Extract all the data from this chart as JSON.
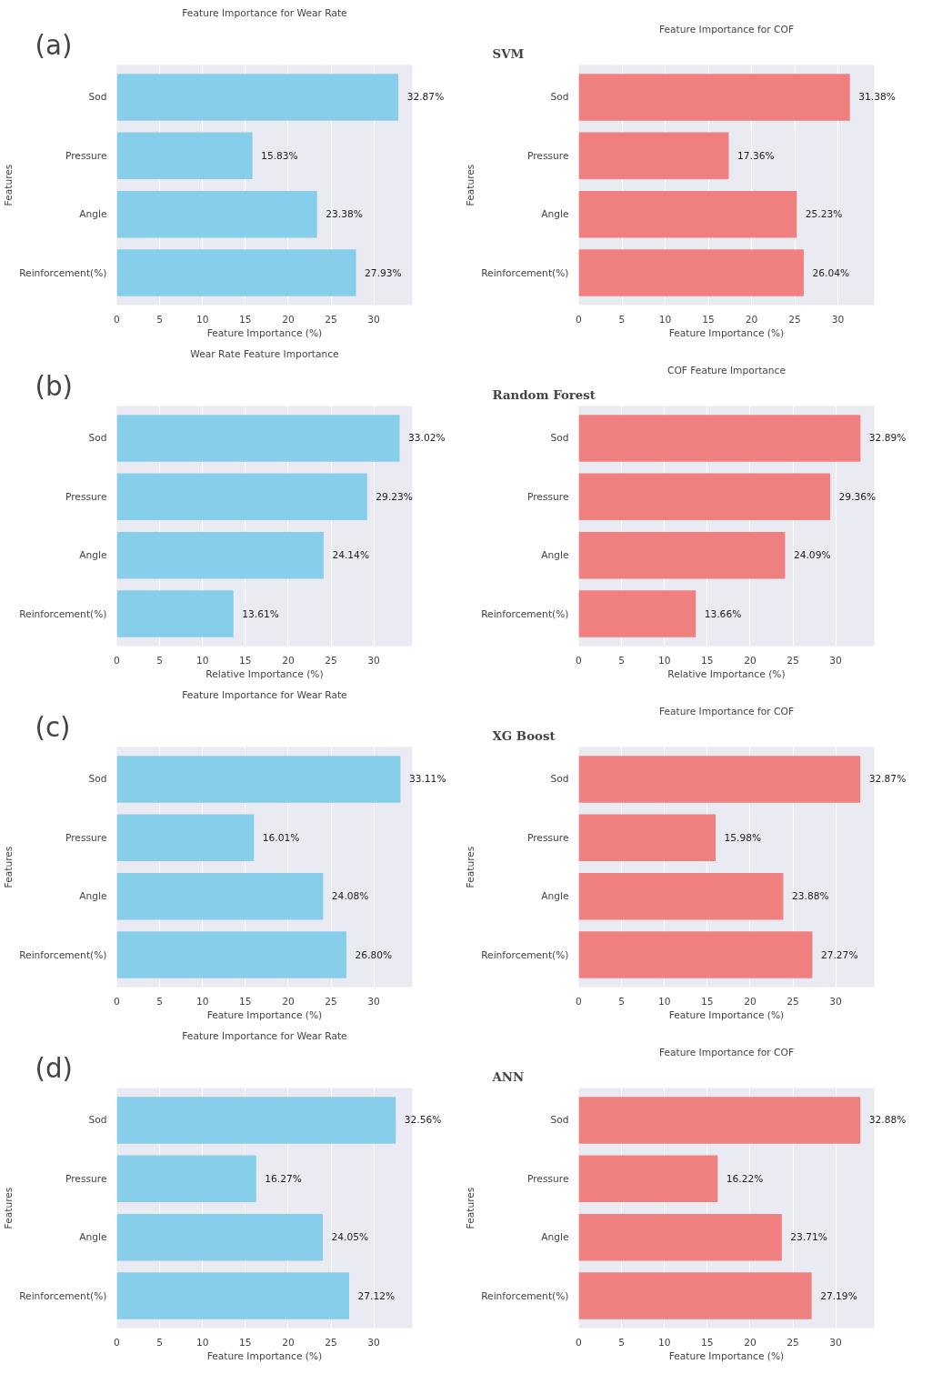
{
  "chart_data": [
    {
      "type": "bar",
      "orientation": "horizontal",
      "title": "Feature Importance for Wear Rate",
      "xlabel": "Feature Importance (%)",
      "ylabel": "Features",
      "annotations": [
        "(a)"
      ],
      "categories": [
        "Sod",
        "Pressure",
        "Angle",
        "Reinforcement(%)"
      ],
      "values": [
        32.87,
        15.83,
        23.38,
        27.93
      ],
      "value_labels": [
        "32.87%",
        "15.83%",
        "23.38%",
        "27.93%"
      ],
      "color": "#87ceeb",
      "xlim": [
        0,
        34.5
      ],
      "xticks": [
        0,
        5,
        10,
        15,
        20,
        25,
        30
      ],
      "grid": "x"
    },
    {
      "type": "bar",
      "orientation": "horizontal",
      "title": "Feature Importance for COF",
      "xlabel": "Feature Importance (%)",
      "ylabel": "Features",
      "annotations": [
        "SVM"
      ],
      "categories": [
        "Sod",
        "Pressure",
        "Angle",
        "Reinforcement(%)"
      ],
      "values": [
        31.38,
        17.36,
        25.23,
        26.04
      ],
      "value_labels": [
        "31.38%",
        "17.36%",
        "25.23%",
        "26.04%"
      ],
      "color": "#f08080",
      "xlim": [
        0,
        34.2
      ],
      "xticks": [
        0,
        5,
        10,
        15,
        20,
        25,
        30
      ],
      "grid": "x"
    },
    {
      "type": "bar",
      "orientation": "horizontal",
      "title": "Wear Rate Feature Importance",
      "xlabel": "Relative Importance (%)",
      "annotations": [
        "(b)"
      ],
      "categories": [
        "Sod",
        "Pressure",
        "Angle",
        "Reinforcement(%)"
      ],
      "values": [
        33.02,
        29.23,
        24.14,
        13.61
      ],
      "value_labels": [
        "33.02%",
        "29.23%",
        "24.14%",
        "13.61%"
      ],
      "color": "#87ceeb",
      "xlim": [
        0,
        34.5
      ],
      "xticks": [
        0,
        5,
        10,
        15,
        20,
        25,
        30
      ],
      "grid": "x"
    },
    {
      "type": "bar",
      "orientation": "horizontal",
      "title": "COF Feature Importance",
      "xlabel": "Relative Importance (%)",
      "annotations": [
        "Random Forest"
      ],
      "categories": [
        "Sod",
        "Pressure",
        "Angle",
        "Reinforcement(%)"
      ],
      "values": [
        32.89,
        29.36,
        24.09,
        13.66
      ],
      "value_labels": [
        "32.89%",
        "29.36%",
        "24.09%",
        "13.66%"
      ],
      "color": "#f08080",
      "xlim": [
        0,
        34.5
      ],
      "xticks": [
        0,
        5,
        10,
        15,
        20,
        25,
        30
      ],
      "grid": "x"
    },
    {
      "type": "bar",
      "orientation": "horizontal",
      "title": "Feature Importance for Wear Rate",
      "xlabel": "Feature Importance (%)",
      "ylabel": "Features",
      "annotations": [
        "(c)"
      ],
      "categories": [
        "Sod",
        "Pressure",
        "Angle",
        "Reinforcement(%)"
      ],
      "values": [
        33.11,
        16.01,
        24.08,
        26.8
      ],
      "value_labels": [
        "33.11%",
        "16.01%",
        "24.08%",
        "26.80%"
      ],
      "color": "#87ceeb",
      "xlim": [
        0,
        34.5
      ],
      "xticks": [
        0,
        5,
        10,
        15,
        20,
        25,
        30
      ],
      "grid": "x"
    },
    {
      "type": "bar",
      "orientation": "horizontal",
      "title": "Feature Importance for COF",
      "xlabel": "Feature Importance (%)",
      "ylabel": "Features",
      "annotations": [
        "XG Boost"
      ],
      "categories": [
        "Sod",
        "Pressure",
        "Angle",
        "Reinforcement(%)"
      ],
      "values": [
        32.87,
        15.98,
        23.88,
        27.27
      ],
      "value_labels": [
        "32.87%",
        "15.98%",
        "23.88%",
        "27.27%"
      ],
      "color": "#f08080",
      "xlim": [
        0,
        34.5
      ],
      "xticks": [
        0,
        5,
        10,
        15,
        20,
        25,
        30
      ],
      "grid": "x"
    },
    {
      "type": "bar",
      "orientation": "horizontal",
      "title": "Feature Importance for Wear Rate",
      "xlabel": "Feature Importance (%)",
      "ylabel": "Features",
      "annotations": [
        "(d)"
      ],
      "categories": [
        "Sod",
        "Pressure",
        "Angle",
        "Reinforcement(%)"
      ],
      "values": [
        32.56,
        16.27,
        24.05,
        27.12
      ],
      "value_labels": [
        "32.56%",
        "16.27%",
        "24.05%",
        "27.12%"
      ],
      "color": "#87ceeb",
      "xlim": [
        0,
        34.5
      ],
      "xticks": [
        0,
        5,
        10,
        15,
        20,
        25,
        30
      ],
      "grid": "x"
    },
    {
      "type": "bar",
      "orientation": "horizontal",
      "title": "Feature Importance for COF",
      "xlabel": "Feature Importance (%)",
      "ylabel": "Features",
      "annotations": [
        "ANN"
      ],
      "categories": [
        "Sod",
        "Pressure",
        "Angle",
        "Reinforcement(%)"
      ],
      "values": [
        32.88,
        16.22,
        23.71,
        27.19
      ],
      "value_labels": [
        "32.88%",
        "16.22%",
        "23.71%",
        "27.19%"
      ],
      "color": "#f08080",
      "xlim": [
        0,
        34.5
      ],
      "xticks": [
        0,
        5,
        10,
        15,
        20,
        25,
        30
      ],
      "grid": "x"
    }
  ]
}
